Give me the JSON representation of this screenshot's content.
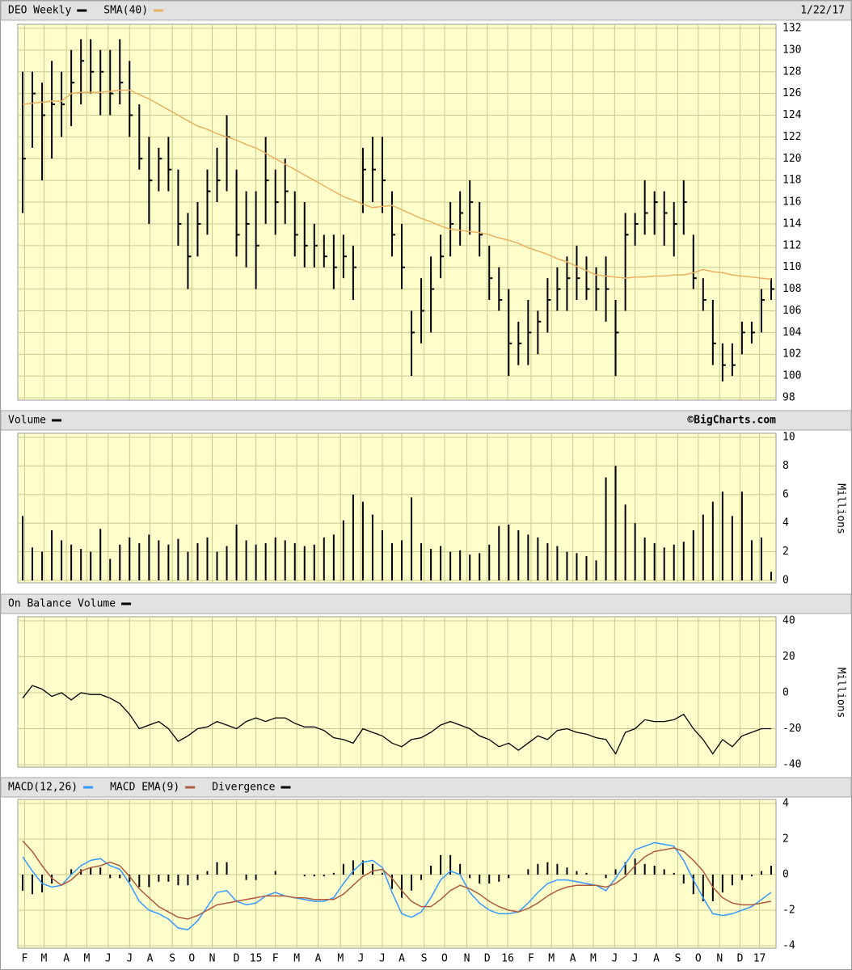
{
  "chart_data": [
    {
      "type": "ohlc",
      "title": "DEO Weekly",
      "date": "1/22/17",
      "color": "#000000",
      "high": [
        128,
        128,
        127,
        129,
        128,
        130,
        131,
        131,
        130,
        130,
        131,
        129,
        125,
        122,
        121,
        122,
        119,
        115,
        116,
        119,
        121,
        124,
        119,
        117,
        117,
        122,
        119,
        120,
        117,
        116,
        114,
        113,
        113,
        113,
        112,
        121,
        122,
        122,
        117,
        114,
        106,
        109,
        111,
        113,
        116,
        117,
        118,
        116,
        112,
        110,
        108,
        105,
        107,
        106,
        109,
        110,
        111,
        112,
        111,
        110,
        111,
        107,
        115,
        115,
        118,
        117,
        117,
        116,
        118,
        113,
        109,
        107,
        103,
        103,
        105,
        105,
        108,
        109
      ],
      "low": [
        115,
        121,
        118,
        120,
        122,
        123,
        125,
        126,
        124,
        124,
        125,
        122,
        119,
        114,
        117,
        117,
        112,
        108,
        111,
        113,
        116,
        117,
        111,
        110,
        108,
        114,
        113,
        114,
        111,
        110,
        110,
        110,
        108,
        109,
        107,
        115,
        116,
        115,
        111,
        108,
        100,
        103,
        104,
        109,
        111,
        112,
        113,
        111,
        107,
        106,
        100,
        101,
        101,
        102,
        104,
        106,
        106,
        107,
        107,
        106,
        105,
        100,
        106,
        112,
        113,
        113,
        112,
        111,
        113,
        108,
        106,
        101,
        99.5,
        100,
        102,
        103,
        104,
        107
      ],
      "close": [
        120,
        126,
        124,
        125,
        125,
        127,
        129,
        128,
        128,
        126,
        127,
        124,
        120,
        118,
        120,
        119,
        114,
        111,
        114,
        117,
        118,
        122,
        113,
        114,
        112,
        118,
        116,
        117,
        113,
        112,
        112,
        111,
        110,
        111,
        110,
        119,
        119,
        118,
        113,
        110,
        104,
        106,
        108,
        111,
        114,
        115,
        116,
        113,
        109,
        107,
        103,
        103,
        104,
        105,
        107,
        108,
        109,
        109,
        108,
        108,
        108,
        104,
        113,
        114,
        115,
        116,
        115,
        114,
        116,
        109,
        107,
        103,
        101,
        101,
        104,
        104,
        107,
        108
      ],
      "series": [
        {
          "name": "SMA(40)",
          "color": "#e8b060",
          "values": [
            125,
            125.1,
            125.2,
            125.3,
            125.3,
            126,
            126.1,
            126.1,
            126.1,
            126.2,
            126.3,
            126.3,
            125.9,
            125.5,
            125,
            124.5,
            124,
            123.5,
            123,
            122.7,
            122.3,
            122,
            121.7,
            121.3,
            121,
            120.5,
            120,
            119.5,
            119,
            118.5,
            118,
            117.5,
            117,
            116.5,
            116.2,
            115.8,
            115.5,
            115.6,
            115.7,
            115.3,
            114.9,
            114.5,
            114.2,
            113.8,
            113.5,
            113.4,
            113.3,
            113.2,
            113,
            112.7,
            112.5,
            112.2,
            111.8,
            111.5,
            111.2,
            110.8,
            110.5,
            110.1,
            109.7,
            109.3,
            109.2,
            109.1,
            109,
            109.1,
            109.1,
            109.2,
            109.2,
            109.3,
            109.3,
            109.5,
            109.8,
            109.6,
            109.5,
            109.3,
            109.2,
            109.1,
            109,
            108.9
          ]
        }
      ],
      "ylim": [
        98,
        132
      ],
      "yticks": [
        98,
        100,
        102,
        104,
        106,
        108,
        110,
        112,
        114,
        116,
        118,
        120,
        122,
        124,
        126,
        128,
        130,
        132
      ],
      "grid": true
    },
    {
      "type": "bar",
      "title": "Volume",
      "credit": "©BigCharts.com",
      "y_label": "Millions",
      "color": "#000000",
      "values": [
        4.5,
        2.3,
        2,
        3.5,
        2.8,
        2.5,
        2.2,
        2,
        3.6,
        1.5,
        2.5,
        3,
        2.6,
        3.2,
        2.8,
        2.5,
        2.9,
        2,
        2.6,
        3,
        2,
        2.4,
        3.9,
        2.8,
        2.5,
        2.6,
        3,
        2.8,
        2.6,
        2.4,
        2.5,
        3,
        3.2,
        4.2,
        6,
        5.5,
        4.6,
        3.5,
        2.6,
        2.8,
        5.8,
        2.6,
        2.2,
        2.4,
        2,
        2.1,
        1.8,
        1.9,
        2.5,
        3.8,
        3.9,
        3.5,
        3.2,
        3,
        2.6,
        2.4,
        2,
        1.9,
        1.7,
        1.4,
        7.2,
        8,
        5.3,
        4,
        3,
        2.6,
        2.3,
        2.5,
        2.7,
        3.5,
        4.6,
        5.5,
        6.2,
        4.5,
        6.2,
        2.8,
        3,
        0.6
      ],
      "ylim": [
        0,
        10
      ],
      "yticks": [
        0,
        2,
        4,
        6,
        8,
        10
      ],
      "grid": true
    },
    {
      "type": "line",
      "title": "On Balance Volume",
      "y_label": "Millions",
      "color": "#000000",
      "values": [
        -3,
        4,
        2,
        -2,
        0,
        -4,
        0,
        -1,
        -1,
        -3,
        -6,
        -12,
        -20,
        -18,
        -16,
        -20,
        -27,
        -24,
        -20,
        -19,
        -16,
        -18,
        -20,
        -16,
        -14,
        -16,
        -14,
        -14,
        -17,
        -19,
        -19,
        -21,
        -25,
        -26,
        -28,
        -20,
        -22,
        -24,
        -28,
        -30,
        -26,
        -25,
        -22,
        -18,
        -16,
        -18,
        -20,
        -24,
        -26,
        -30,
        -28,
        -32,
        -28,
        -24,
        -26,
        -21,
        -20,
        -22,
        -23,
        -25,
        -26,
        -34,
        -22,
        -20,
        -15,
        -16,
        -16,
        -15,
        -12,
        -20,
        -26,
        -34,
        -26,
        -30,
        -24,
        -22,
        -20,
        -20
      ],
      "ylim": [
        -40,
        40
      ],
      "yticks": [
        -40,
        -20,
        0,
        20,
        40
      ],
      "grid": true
    },
    {
      "type": "macd",
      "series": [
        {
          "name": "MACD(12,26)",
          "color": "#3399ff",
          "kind": "line",
          "values": [
            1,
            0.2,
            -0.5,
            -0.7,
            -0.6,
            0,
            0.5,
            0.8,
            0.9,
            0.5,
            0.3,
            -0.5,
            -1.5,
            -2,
            -2.2,
            -2.5,
            -3,
            -3.1,
            -2.6,
            -1.8,
            -1,
            -0.9,
            -1.5,
            -1.7,
            -1.6,
            -1.2,
            -1,
            -1.2,
            -1.3,
            -1.4,
            -1.5,
            -1.5,
            -1.3,
            -0.5,
            0.2,
            0.7,
            0.8,
            0.4,
            -1,
            -2.2,
            -2.4,
            -2.1,
            -1.3,
            -0.3,
            0.2,
            0,
            -1,
            -1.6,
            -2,
            -2.2,
            -2.2,
            -2.1,
            -1.6,
            -1,
            -0.5,
            -0.3,
            -0.3,
            -0.4,
            -0.5,
            -0.6,
            -0.9,
            -0.2,
            0.6,
            1.4,
            1.6,
            1.8,
            1.7,
            1.6,
            0.8,
            -0.3,
            -1.3,
            -2.2,
            -2.3,
            -2.2,
            -2,
            -1.8,
            -1.4,
            -1
          ]
        },
        {
          "name": "MACD EMA(9)",
          "color": "#b05a40",
          "kind": "line",
          "values": [
            1.9,
            1.3,
            0.5,
            -0.2,
            -0.6,
            -0.3,
            0.2,
            0.4,
            0.5,
            0.7,
            0.5,
            -0.1,
            -0.8,
            -1.3,
            -1.8,
            -2.1,
            -2.4,
            -2.5,
            -2.3,
            -2,
            -1.7,
            -1.6,
            -1.5,
            -1.4,
            -1.3,
            -1.2,
            -1.2,
            -1.2,
            -1.3,
            -1.3,
            -1.4,
            -1.4,
            -1.4,
            -1.1,
            -0.6,
            -0.1,
            0.2,
            0.3,
            -0.2,
            -0.9,
            -1.5,
            -1.8,
            -1.8,
            -1.4,
            -0.9,
            -0.6,
            -0.8,
            -1.1,
            -1.5,
            -1.8,
            -2,
            -2.1,
            -1.9,
            -1.6,
            -1.2,
            -0.9,
            -0.7,
            -0.6,
            -0.6,
            -0.6,
            -0.7,
            -0.5,
            -0.1,
            0.5,
            1,
            1.3,
            1.4,
            1.5,
            1.3,
            0.8,
            0.2,
            -0.7,
            -1.3,
            -1.6,
            -1.7,
            -1.7,
            -1.6,
            -1.5
          ]
        },
        {
          "name": "Divergence",
          "color": "#000000",
          "kind": "bar",
          "values": [
            -0.9,
            -1.1,
            -1,
            -0.5,
            0,
            0.3,
            0.3,
            0.4,
            0.4,
            -0.2,
            -0.2,
            -0.4,
            -0.7,
            -0.7,
            -0.4,
            -0.4,
            -0.6,
            -0.6,
            -0.3,
            0.2,
            0.7,
            0.7,
            0,
            -0.3,
            -0.3,
            0,
            0.2,
            0,
            0,
            -0.1,
            -0.1,
            -0.1,
            0.1,
            0.6,
            0.8,
            0.8,
            0.6,
            0.1,
            -0.8,
            -1.3,
            -0.9,
            -0.3,
            0.5,
            1.1,
            1.1,
            0.6,
            -0.2,
            -0.5,
            -0.5,
            -0.4,
            -0.2,
            0,
            0.3,
            0.6,
            0.7,
            0.6,
            0.4,
            0.2,
            0.1,
            0,
            -0.2,
            0.3,
            0.7,
            0.9,
            0.6,
            0.5,
            0.3,
            0.1,
            -0.5,
            -1.1,
            -1.5,
            -1.5,
            -1,
            -0.6,
            -0.3,
            -0.1,
            0.2,
            0.5
          ]
        }
      ],
      "ylim": [
        -4,
        4
      ],
      "yticks": [
        -4,
        -2,
        0,
        2,
        4
      ],
      "grid": true,
      "xticks": [
        {
          "value": 0.2,
          "label": "F"
        },
        {
          "value": 2.2,
          "label": "M"
        },
        {
          "value": 4.5,
          "label": "A"
        },
        {
          "value": 6.6,
          "label": "M"
        },
        {
          "value": 8.8,
          "label": "J"
        },
        {
          "value": 11,
          "label": "J"
        },
        {
          "value": 13.1,
          "label": "A"
        },
        {
          "value": 15.4,
          "label": "S"
        },
        {
          "value": 17.4,
          "label": "O"
        },
        {
          "value": 19.5,
          "label": "N"
        },
        {
          "value": 22,
          "label": "D"
        },
        {
          "value": 24,
          "label": "15"
        },
        {
          "value": 26,
          "label": "F"
        },
        {
          "value": 28.2,
          "label": "M"
        },
        {
          "value": 30.4,
          "label": "A"
        },
        {
          "value": 32.7,
          "label": "M"
        },
        {
          "value": 34.8,
          "label": "J"
        },
        {
          "value": 37,
          "label": "J"
        },
        {
          "value": 39,
          "label": "A"
        },
        {
          "value": 41.3,
          "label": "S"
        },
        {
          "value": 43.4,
          "label": "O"
        },
        {
          "value": 45.7,
          "label": "N"
        },
        {
          "value": 47.8,
          "label": "D"
        },
        {
          "value": 49.9,
          "label": "16"
        },
        {
          "value": 52.3,
          "label": "F"
        },
        {
          "value": 54.4,
          "label": "M"
        },
        {
          "value": 56.6,
          "label": "A"
        },
        {
          "value": 58.7,
          "label": "M"
        },
        {
          "value": 60.9,
          "label": "J"
        },
        {
          "value": 63,
          "label": "J"
        },
        {
          "value": 65.2,
          "label": "A"
        },
        {
          "value": 67.4,
          "label": "S"
        },
        {
          "value": 69.5,
          "label": "O"
        },
        {
          "value": 71.7,
          "label": "N"
        },
        {
          "value": 73.8,
          "label": "D"
        },
        {
          "value": 75.8,
          "label": "17"
        }
      ]
    }
  ]
}
